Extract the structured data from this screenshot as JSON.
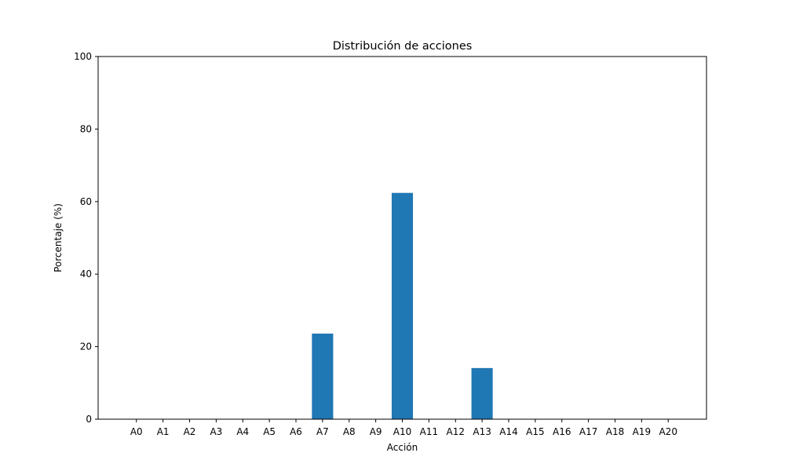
{
  "chart_data": {
    "type": "bar",
    "title": "Distribución de acciones",
    "xlabel": "Acción",
    "ylabel": "Porcentaje (%)",
    "categories": [
      "A0",
      "A1",
      "A2",
      "A3",
      "A4",
      "A5",
      "A6",
      "A7",
      "A8",
      "A9",
      "A10",
      "A11",
      "A12",
      "A13",
      "A14",
      "A15",
      "A16",
      "A17",
      "A18",
      "A19",
      "A20"
    ],
    "values": [
      0,
      0,
      0,
      0,
      0,
      0,
      0,
      23.6,
      0,
      0,
      62.4,
      0,
      0,
      14.1,
      0,
      0,
      0,
      0,
      0,
      0,
      0
    ],
    "ylim": [
      0,
      100
    ],
    "yticks": [
      0,
      20,
      40,
      60,
      80,
      100
    ],
    "bar_color": "#1f77b4",
    "grid": false,
    "legend": "none"
  }
}
